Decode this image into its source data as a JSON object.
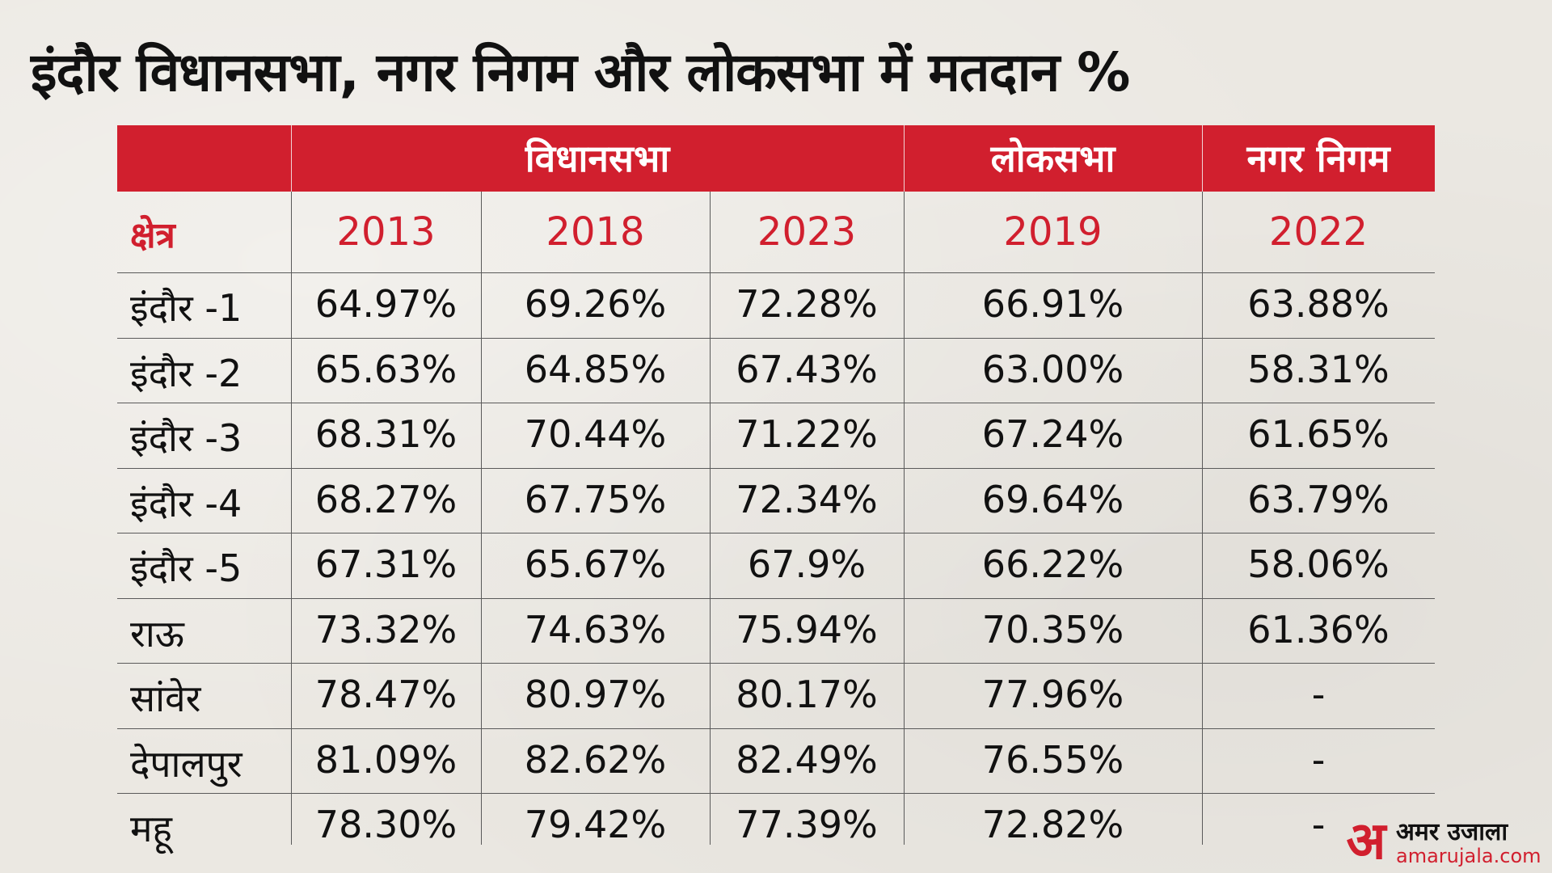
{
  "chart_data": {
    "type": "table",
    "title": "इंदौर विधानसभा, नगर निगम और लोकसभा में मतदान %",
    "column_groups": [
      {
        "label": "विधानसभा"
      },
      {
        "label": "लोकसभा"
      },
      {
        "label": "नगर निगम"
      }
    ],
    "row_header_label": "क्षेत्र",
    "years": [
      "2013",
      "2018",
      "2023",
      "2019",
      "2022"
    ],
    "rows": [
      {
        "area": "इंदौर -1",
        "values": [
          "64.97%",
          "69.26%",
          "72.28%",
          "66.91%",
          "63.88%"
        ]
      },
      {
        "area": "इंदौर -2",
        "values": [
          "65.63%",
          "64.85%",
          "67.43%",
          "63.00%",
          "58.31%"
        ]
      },
      {
        "area": "इंदौर -3",
        "values": [
          "68.31%",
          "70.44%",
          "71.22%",
          "67.24%",
          "61.65%"
        ]
      },
      {
        "area": "इंदौर -4",
        "values": [
          "68.27%",
          "67.75%",
          "72.34%",
          "69.64%",
          "63.79%"
        ]
      },
      {
        "area": "इंदौर -5",
        "values": [
          "67.31%",
          "65.67%",
          "67.9%",
          "66.22%",
          "58.06%"
        ]
      },
      {
        "area": "राऊ",
        "values": [
          "73.32%",
          "74.63%",
          "75.94%",
          "70.35%",
          "61.36%"
        ]
      },
      {
        "area": "सांवेर",
        "values": [
          "78.47%",
          "80.97%",
          "80.17%",
          "77.96%",
          "-"
        ]
      },
      {
        "area": "देपालपुर",
        "values": [
          "81.09%",
          "82.62%",
          "82.49%",
          "76.55%",
          "-"
        ]
      },
      {
        "area": "महू",
        "values": [
          "78.30%",
          "79.42%",
          "77.39%",
          "72.82%",
          "-"
        ]
      }
    ]
  },
  "colors": {
    "header_red": "#d11f2e",
    "year_red": "#d11f2e",
    "background": "#ebe8e2",
    "text": "#111111",
    "grid": "#5a5a5a"
  },
  "logo": {
    "mark": "अ",
    "name": "अमर उजाला",
    "url": "amarujala.com"
  }
}
